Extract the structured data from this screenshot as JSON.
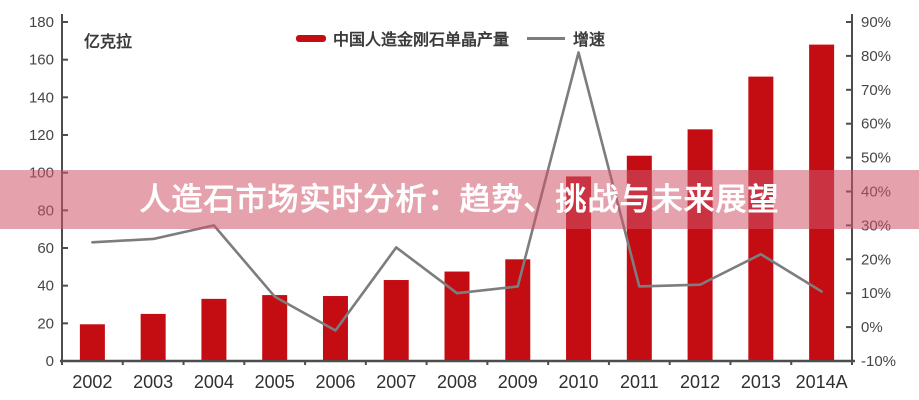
{
  "banner": {
    "text": "人造石市场实时分析：趋势、挑战与未来展望",
    "overlay_color": "rgba(207,84,104,0.55)",
    "text_color": "#ffffff"
  },
  "chart_data": {
    "type": "bar",
    "title": "",
    "categories": [
      "2002",
      "2003",
      "2004",
      "2005",
      "2006",
      "2007",
      "2008",
      "2009",
      "2010",
      "2011",
      "2012",
      "2013",
      "2014A"
    ],
    "series": [
      {
        "name": "中国人造金刚石单晶产量",
        "type": "bar",
        "axis": "left",
        "color": "#C40D13",
        "values": [
          19.5,
          25,
          33,
          35,
          34.5,
          43,
          47.5,
          54,
          98,
          109,
          123,
          151,
          168
        ]
      },
      {
        "name": "增速",
        "type": "line",
        "axis": "right",
        "color": "#7D7D7D",
        "unit": "%",
        "values": [
          25,
          26,
          30,
          9,
          -1,
          23.5,
          10,
          12,
          81,
          12,
          12.5,
          21.5,
          10.5
        ]
      }
    ],
    "left_axis": {
      "unit": "亿克拉",
      "min": 0,
      "max": 180,
      "step": 20,
      "tick_labels": [
        "0",
        "20",
        "40",
        "60",
        "80",
        "100",
        "120",
        "140",
        "160",
        "180"
      ]
    },
    "right_axis": {
      "min": -10,
      "max": 90,
      "step": 10,
      "tick_labels": [
        "-10%",
        "0%",
        "10%",
        "20%",
        "30%",
        "40%",
        "50%",
        "60%",
        "70%",
        "80%",
        "90%"
      ]
    },
    "grid": false,
    "legend_position": "top-center",
    "axis_color": "#4D4D4D",
    "tick_label_color": "#464646",
    "category_label_color": "#303030"
  }
}
